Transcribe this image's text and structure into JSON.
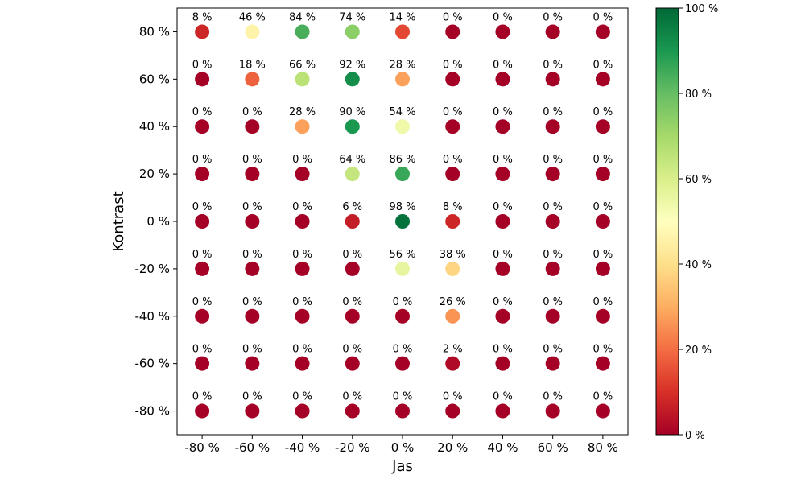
{
  "chart_data": {
    "type": "scatter",
    "xlabel": "Jas",
    "ylabel": "Kontrast",
    "x_ticks": [
      -80,
      -60,
      -40,
      -20,
      0,
      20,
      40,
      60,
      80
    ],
    "y_ticks": [
      80,
      60,
      40,
      20,
      0,
      -20,
      -40,
      -60,
      -80
    ],
    "x_tick_labels": [
      "-80 %",
      "-60 %",
      "-40 %",
      "-20 %",
      "0 %",
      "20 %",
      "40 %",
      "60 %",
      "80 %"
    ],
    "y_tick_labels": [
      "80 %",
      "60 %",
      "40 %",
      "20 %",
      "0 %",
      "-20 %",
      "-40 %",
      "-60 %",
      "-80 %"
    ],
    "xlim": [
      -90,
      90
    ],
    "ylim": [
      -90,
      90
    ],
    "value_grid": [
      [
        8,
        46,
        84,
        74,
        14,
        0,
        0,
        0,
        0
      ],
      [
        0,
        18,
        66,
        92,
        28,
        0,
        0,
        0,
        0
      ],
      [
        0,
        0,
        28,
        90,
        54,
        0,
        0,
        0,
        0
      ],
      [
        0,
        0,
        0,
        64,
        86,
        0,
        0,
        0,
        0
      ],
      [
        0,
        0,
        0,
        6,
        98,
        8,
        0,
        0,
        0
      ],
      [
        0,
        0,
        0,
        0,
        56,
        38,
        0,
        0,
        0
      ],
      [
        0,
        0,
        0,
        0,
        0,
        26,
        0,
        0,
        0
      ],
      [
        0,
        0,
        0,
        0,
        0,
        2,
        0,
        0,
        0
      ],
      [
        0,
        0,
        0,
        0,
        0,
        0,
        0,
        0,
        0
      ]
    ],
    "value_suffix": " %",
    "colorbar": {
      "colormap": "RdYlGn",
      "range": [
        0,
        100
      ],
      "ticks": [
        0,
        20,
        40,
        60,
        80,
        100
      ],
      "tick_labels": [
        "0 %",
        "20 %",
        "40 %",
        "60 %",
        "80 %",
        "100 %"
      ]
    },
    "grid": false
  }
}
